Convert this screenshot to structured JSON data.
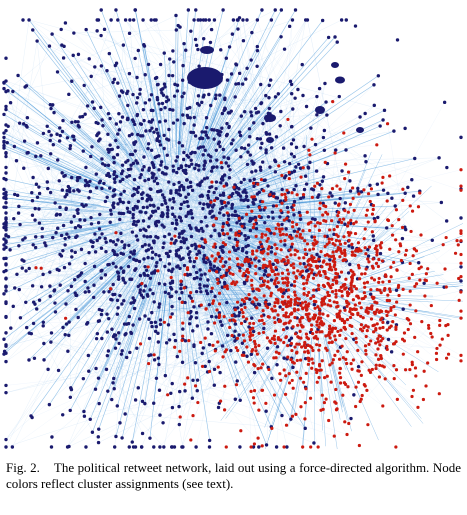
{
  "figure": {
    "label": "Fig. 2.",
    "caption": "The political retweet network, laid out using a force-directed algorithm. Node colors reflect cluster assignments (see text)."
  },
  "colors": {
    "cluster_left": "#1a1a6e",
    "cluster_right": "#cc1a10",
    "edge": "#3a8fd6",
    "background": "#ffffff"
  }
}
